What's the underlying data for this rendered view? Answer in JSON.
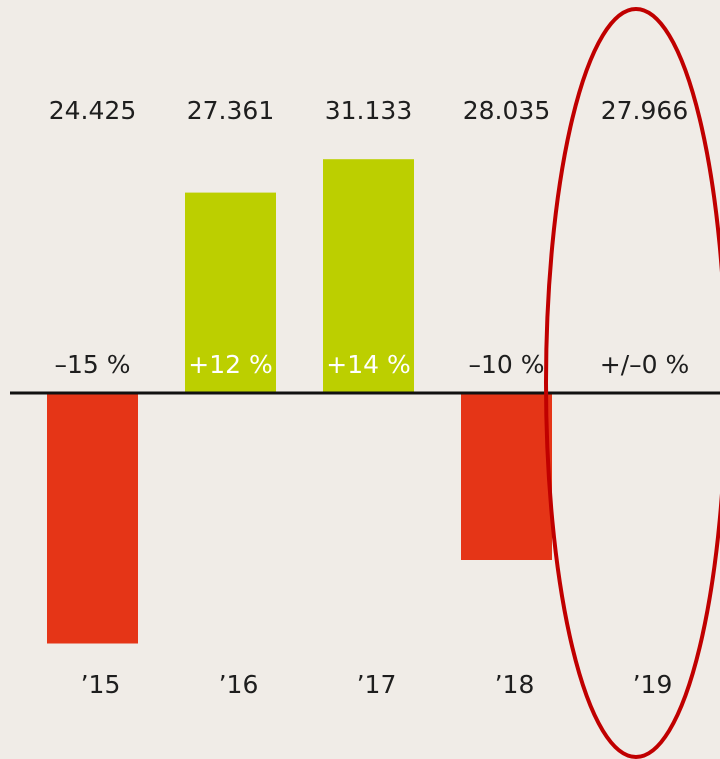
{
  "chart_data": {
    "type": "bar",
    "categories": [
      "’15",
      "’16",
      "’17",
      "’18",
      "’19"
    ],
    "values": [
      -15,
      12,
      14,
      -10,
      0
    ],
    "value_labels": [
      "–15 %",
      "+12 %",
      "+14 %",
      "–10 %",
      "+/–0 %"
    ],
    "annotations": [
      "24.425",
      "27.361",
      "31.133",
      "28.035",
      "27.966"
    ],
    "colors": {
      "positive": "#bccf00",
      "negative": "#e53517"
    }
  }
}
